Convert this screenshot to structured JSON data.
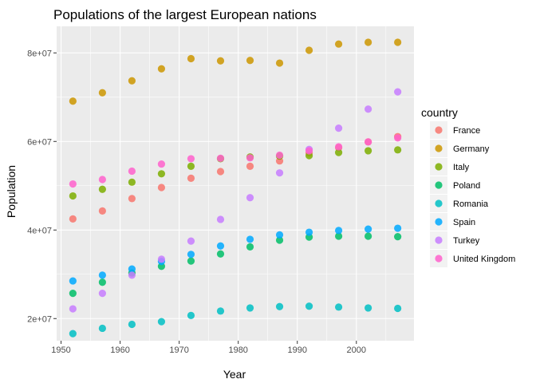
{
  "chart_data": {
    "type": "scatter",
    "title": "Populations of the largest European nations",
    "xlabel": "Year",
    "ylabel": "Population",
    "xlim": [
      1949.25,
      2009.75
    ],
    "ylim": [
      15000000,
      86000000
    ],
    "x_ticks": [
      1950,
      1960,
      1970,
      1980,
      1990,
      2000
    ],
    "x_tick_labels": [
      "1950",
      "1960",
      "1970",
      "1980",
      "1990",
      "2000"
    ],
    "y_ticks": [
      20000000,
      40000000,
      60000000,
      80000000
    ],
    "y_tick_labels": [
      "2e+07",
      "4e+07",
      "6e+07",
      "8e+07"
    ],
    "grid": true,
    "panel_background": "#ebebeb",
    "legend": {
      "title": "country",
      "position": "right"
    },
    "x": [
      1952,
      1957,
      1962,
      1967,
      1972,
      1977,
      1982,
      1987,
      1992,
      1997,
      2002,
      2007
    ],
    "series": [
      {
        "name": "France",
        "color": "#F8766D",
        "values": [
          42500000,
          44300000,
          47100000,
          49600000,
          51700000,
          53200000,
          54400000,
          55600000,
          57400000,
          58600000,
          59900000,
          61100000
        ]
      },
      {
        "name": "Germany",
        "color": "#CD9600",
        "values": [
          69100000,
          71000000,
          73700000,
          76400000,
          78700000,
          78200000,
          78300000,
          77700000,
          80600000,
          82000000,
          82400000,
          82400000
        ]
      },
      {
        "name": "Italy",
        "color": "#7CAE00",
        "values": [
          47700000,
          49200000,
          50800000,
          52700000,
          54400000,
          56100000,
          56500000,
          56700000,
          56800000,
          57500000,
          57900000,
          58100000
        ]
      },
      {
        "name": "Poland",
        "color": "#00BE67",
        "values": [
          25700000,
          28200000,
          30300000,
          31800000,
          33000000,
          34600000,
          36200000,
          37700000,
          38400000,
          38600000,
          38600000,
          38500000
        ]
      },
      {
        "name": "Romania",
        "color": "#00BFC4",
        "values": [
          16600000,
          17800000,
          18700000,
          19300000,
          20700000,
          21700000,
          22400000,
          22700000,
          22800000,
          22600000,
          22400000,
          22300000
        ]
      },
      {
        "name": "Spain",
        "color": "#00A9FF",
        "values": [
          28500000,
          29800000,
          31200000,
          32900000,
          34500000,
          36400000,
          37900000,
          38900000,
          39500000,
          39900000,
          40200000,
          40400000
        ]
      },
      {
        "name": "Turkey",
        "color": "#C77CFF",
        "values": [
          22200000,
          25700000,
          29800000,
          33400000,
          37500000,
          42400000,
          47300000,
          52900000,
          58200000,
          63000000,
          67300000,
          71200000
        ]
      },
      {
        "name": "United Kingdom",
        "color": "#FF61CC",
        "values": [
          50400000,
          51400000,
          53300000,
          54900000,
          56100000,
          56200000,
          56300000,
          56900000,
          57900000,
          58800000,
          59900000,
          60800000
        ]
      }
    ]
  }
}
